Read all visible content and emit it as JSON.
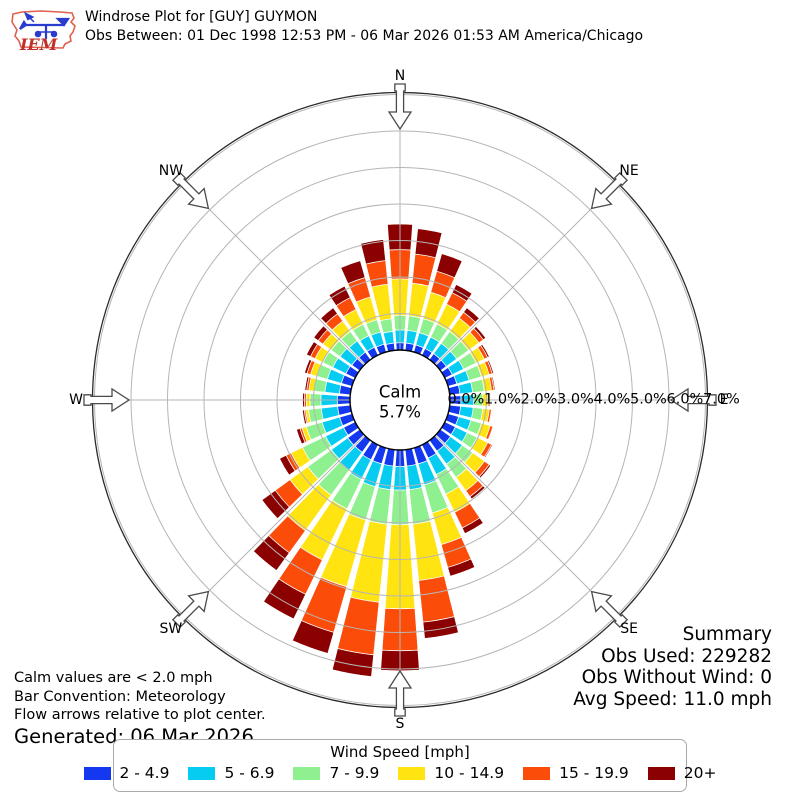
{
  "header": {
    "logo_text": "IEM",
    "title": "Windrose Plot for [GUY] GUYMON",
    "subtitle": "Obs Between: 01 Dec 1998 12:53 PM - 06 Mar 2026 01:53 AM America/Chicago"
  },
  "chart_data": {
    "type": "windrose",
    "units": "mph",
    "direction_step_deg": 10,
    "bar_convention": "Meteorology",
    "calm": {
      "label": "Calm",
      "percent_label": "5.7%"
    },
    "radial_axis": {
      "tick_labels": [
        "0.0%",
        "1.0%",
        "2.0%",
        "3.0%",
        "4.0%",
        "5.0%",
        "6.0%",
        "7.0%"
      ],
      "max_percent": 7.0,
      "grid": true
    },
    "compass": [
      {
        "label": "N",
        "angle": 0
      },
      {
        "label": "NE",
        "angle": 45
      },
      {
        "label": "E",
        "angle": 90
      },
      {
        "label": "SE",
        "angle": 135
      },
      {
        "label": "S",
        "angle": 180
      },
      {
        "label": "SW",
        "angle": 225
      },
      {
        "label": "W",
        "angle": 270
      },
      {
        "label": "NW",
        "angle": 315
      }
    ],
    "speed_bins": [
      {
        "label": "2 - 4.9",
        "color": "#1437f0"
      },
      {
        "label": "5 - 6.9",
        "color": "#06ccf2"
      },
      {
        "label": "7 - 9.9",
        "color": "#8ff08f"
      },
      {
        "label": "10 - 14.9",
        "color": "#ffe412"
      },
      {
        "label": "15 - 19.9",
        "color": "#fb4d09"
      },
      {
        "label": "20+",
        "color": "#8b0000"
      }
    ],
    "directions_note": "percent frequency per 10-degree bin, stacked by speed bin",
    "directions": [
      {
        "angle": 0,
        "values": [
          0.2,
          0.35,
          0.4,
          1.0,
          0.8,
          0.7
        ]
      },
      {
        "angle": 10,
        "values": [
          0.2,
          0.35,
          0.4,
          0.9,
          0.8,
          0.7
        ]
      },
      {
        "angle": 20,
        "values": [
          0.2,
          0.35,
          0.4,
          0.75,
          0.6,
          0.5
        ]
      },
      {
        "angle": 30,
        "values": [
          0.2,
          0.35,
          0.4,
          0.6,
          0.35,
          0.25
        ]
      },
      {
        "angle": 40,
        "values": [
          0.2,
          0.35,
          0.4,
          0.45,
          0.2,
          0.15
        ]
      },
      {
        "angle": 50,
        "values": [
          0.2,
          0.35,
          0.4,
          0.35,
          0.15,
          0.08
        ]
      },
      {
        "angle": 60,
        "values": [
          0.22,
          0.35,
          0.38,
          0.25,
          0.1,
          0.05
        ]
      },
      {
        "angle": 70,
        "values": [
          0.25,
          0.35,
          0.35,
          0.22,
          0.09,
          0.04
        ]
      },
      {
        "angle": 80,
        "values": [
          0.28,
          0.35,
          0.32,
          0.2,
          0.07,
          0.03
        ]
      },
      {
        "angle": 90,
        "values": [
          0.3,
          0.35,
          0.25,
          0.15,
          0.05,
          0.02
        ]
      },
      {
        "angle": 100,
        "values": [
          0.3,
          0.35,
          0.26,
          0.18,
          0.06,
          0.02
        ]
      },
      {
        "angle": 110,
        "values": [
          0.3,
          0.35,
          0.3,
          0.25,
          0.08,
          0.02
        ]
      },
      {
        "angle": 120,
        "values": [
          0.32,
          0.36,
          0.3,
          0.32,
          0.12,
          0.03
        ]
      },
      {
        "angle": 130,
        "values": [
          0.34,
          0.4,
          0.35,
          0.4,
          0.16,
          0.05
        ]
      },
      {
        "angle": 140,
        "values": [
          0.36,
          0.44,
          0.45,
          0.45,
          0.2,
          0.08
        ]
      },
      {
        "angle": 150,
        "values": [
          0.4,
          0.5,
          0.6,
          0.55,
          0.48,
          0.17
        ]
      },
      {
        "angle": 160,
        "values": [
          0.45,
          0.6,
          0.8,
          0.9,
          0.65,
          0.25
        ]
      },
      {
        "angle": 170,
        "values": [
          0.45,
          0.65,
          0.95,
          1.55,
          1.15,
          0.45
        ]
      },
      {
        "angle": 180,
        "values": [
          0.45,
          0.65,
          0.95,
          2.3,
          1.15,
          0.55
        ]
      },
      {
        "angle": 190,
        "values": [
          0.45,
          0.65,
          0.95,
          2.15,
          1.45,
          0.6
        ]
      },
      {
        "angle": 200,
        "values": [
          0.45,
          0.65,
          0.95,
          1.9,
          1.3,
          0.6
        ]
      },
      {
        "angle": 210,
        "values": [
          0.45,
          0.6,
          0.9,
          1.55,
          1.05,
          0.75
        ]
      },
      {
        "angle": 220,
        "values": [
          0.4,
          0.6,
          0.85,
          1.2,
          0.75,
          0.6
        ]
      },
      {
        "angle": 230,
        "values": [
          0.4,
          0.55,
          0.8,
          0.6,
          0.5,
          0.45
        ]
      },
      {
        "angle": 240,
        "values": [
          0.35,
          0.55,
          0.7,
          0.35,
          0.15,
          0.2
        ]
      },
      {
        "angle": 250,
        "values": [
          0.35,
          0.5,
          0.45,
          0.12,
          0.06,
          0.1
        ]
      },
      {
        "angle": 260,
        "values": [
          0.35,
          0.45,
          0.35,
          0.08,
          0.04,
          0.05
        ]
      },
      {
        "angle": 270,
        "values": [
          0.35,
          0.45,
          0.3,
          0.1,
          0.05,
          0.05
        ]
      },
      {
        "angle": 280,
        "values": [
          0.3,
          0.4,
          0.3,
          0.14,
          0.06,
          0.05
        ]
      },
      {
        "angle": 290,
        "values": [
          0.3,
          0.4,
          0.3,
          0.18,
          0.1,
          0.07
        ]
      },
      {
        "angle": 300,
        "values": [
          0.28,
          0.4,
          0.3,
          0.24,
          0.14,
          0.12
        ]
      },
      {
        "angle": 310,
        "values": [
          0.26,
          0.4,
          0.3,
          0.28,
          0.16,
          0.15
        ]
      },
      {
        "angle": 320,
        "values": [
          0.25,
          0.38,
          0.32,
          0.35,
          0.25,
          0.2
        ]
      },
      {
        "angle": 330,
        "values": [
          0.24,
          0.35,
          0.35,
          0.45,
          0.36,
          0.35
        ]
      },
      {
        "angle": 340,
        "values": [
          0.22,
          0.35,
          0.35,
          0.65,
          0.55,
          0.48
        ]
      },
      {
        "angle": 350,
        "values": [
          0.2,
          0.32,
          0.35,
          0.95,
          0.65,
          0.58
        ]
      }
    ]
  },
  "summary": {
    "title": "Summary",
    "obs_used": "Obs Used: 229282",
    "obs_without_wind": "Obs Without Wind: 0",
    "avg_speed": "Avg Speed: 11.0 mph"
  },
  "notes": {
    "calm": "Calm values are < 2.0 mph",
    "convention": "Bar Convention: Meteorology",
    "arrows": "Flow arrows relative to plot center.",
    "generated": "Generated: 06 Mar 2026"
  },
  "legend": {
    "title": "Wind Speed [mph]"
  }
}
